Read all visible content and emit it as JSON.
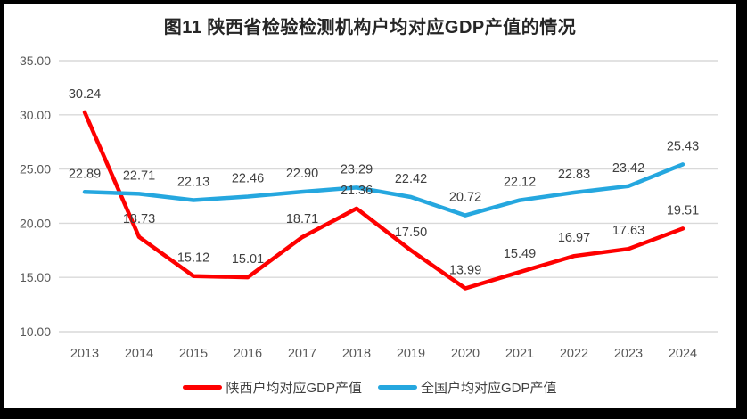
{
  "frame": {
    "background_color": "#000000",
    "surface_color": "#ffffff"
  },
  "chart_data": {
    "type": "line",
    "title": "图11  陕西省检验检测机构户均对应GDP产值的情况",
    "categories": [
      "2013",
      "2014",
      "2015",
      "2016",
      "2017",
      "2018",
      "2019",
      "2020",
      "2021",
      "2022",
      "2023",
      "2024"
    ],
    "series": [
      {
        "name": "陕西户均对应GDP产值",
        "color": "#FE0000",
        "values": [
          30.24,
          18.73,
          15.12,
          15.01,
          18.71,
          21.36,
          17.5,
          13.99,
          15.49,
          16.97,
          17.63,
          19.51
        ]
      },
      {
        "name": "全国户均对应GDP产值",
        "color": "#25A7DF",
        "values": [
          22.89,
          22.71,
          22.13,
          22.46,
          22.9,
          23.29,
          22.42,
          20.72,
          22.12,
          22.83,
          23.42,
          25.43
        ]
      }
    ],
    "xlabel": "",
    "ylabel": "",
    "ylim": [
      10,
      35
    ],
    "ytick_step": 5,
    "ytick_labels": [
      "10.00",
      "15.00",
      "20.00",
      "25.00",
      "30.00",
      "35.00"
    ],
    "value_labels": true,
    "value_label_decimals": 2,
    "grid": true,
    "gridline_color": "#D9D9D9",
    "axis_text_color": "#595959",
    "value_label_color": "#3F3F3F",
    "legend_position": "bottom",
    "markers": false
  }
}
